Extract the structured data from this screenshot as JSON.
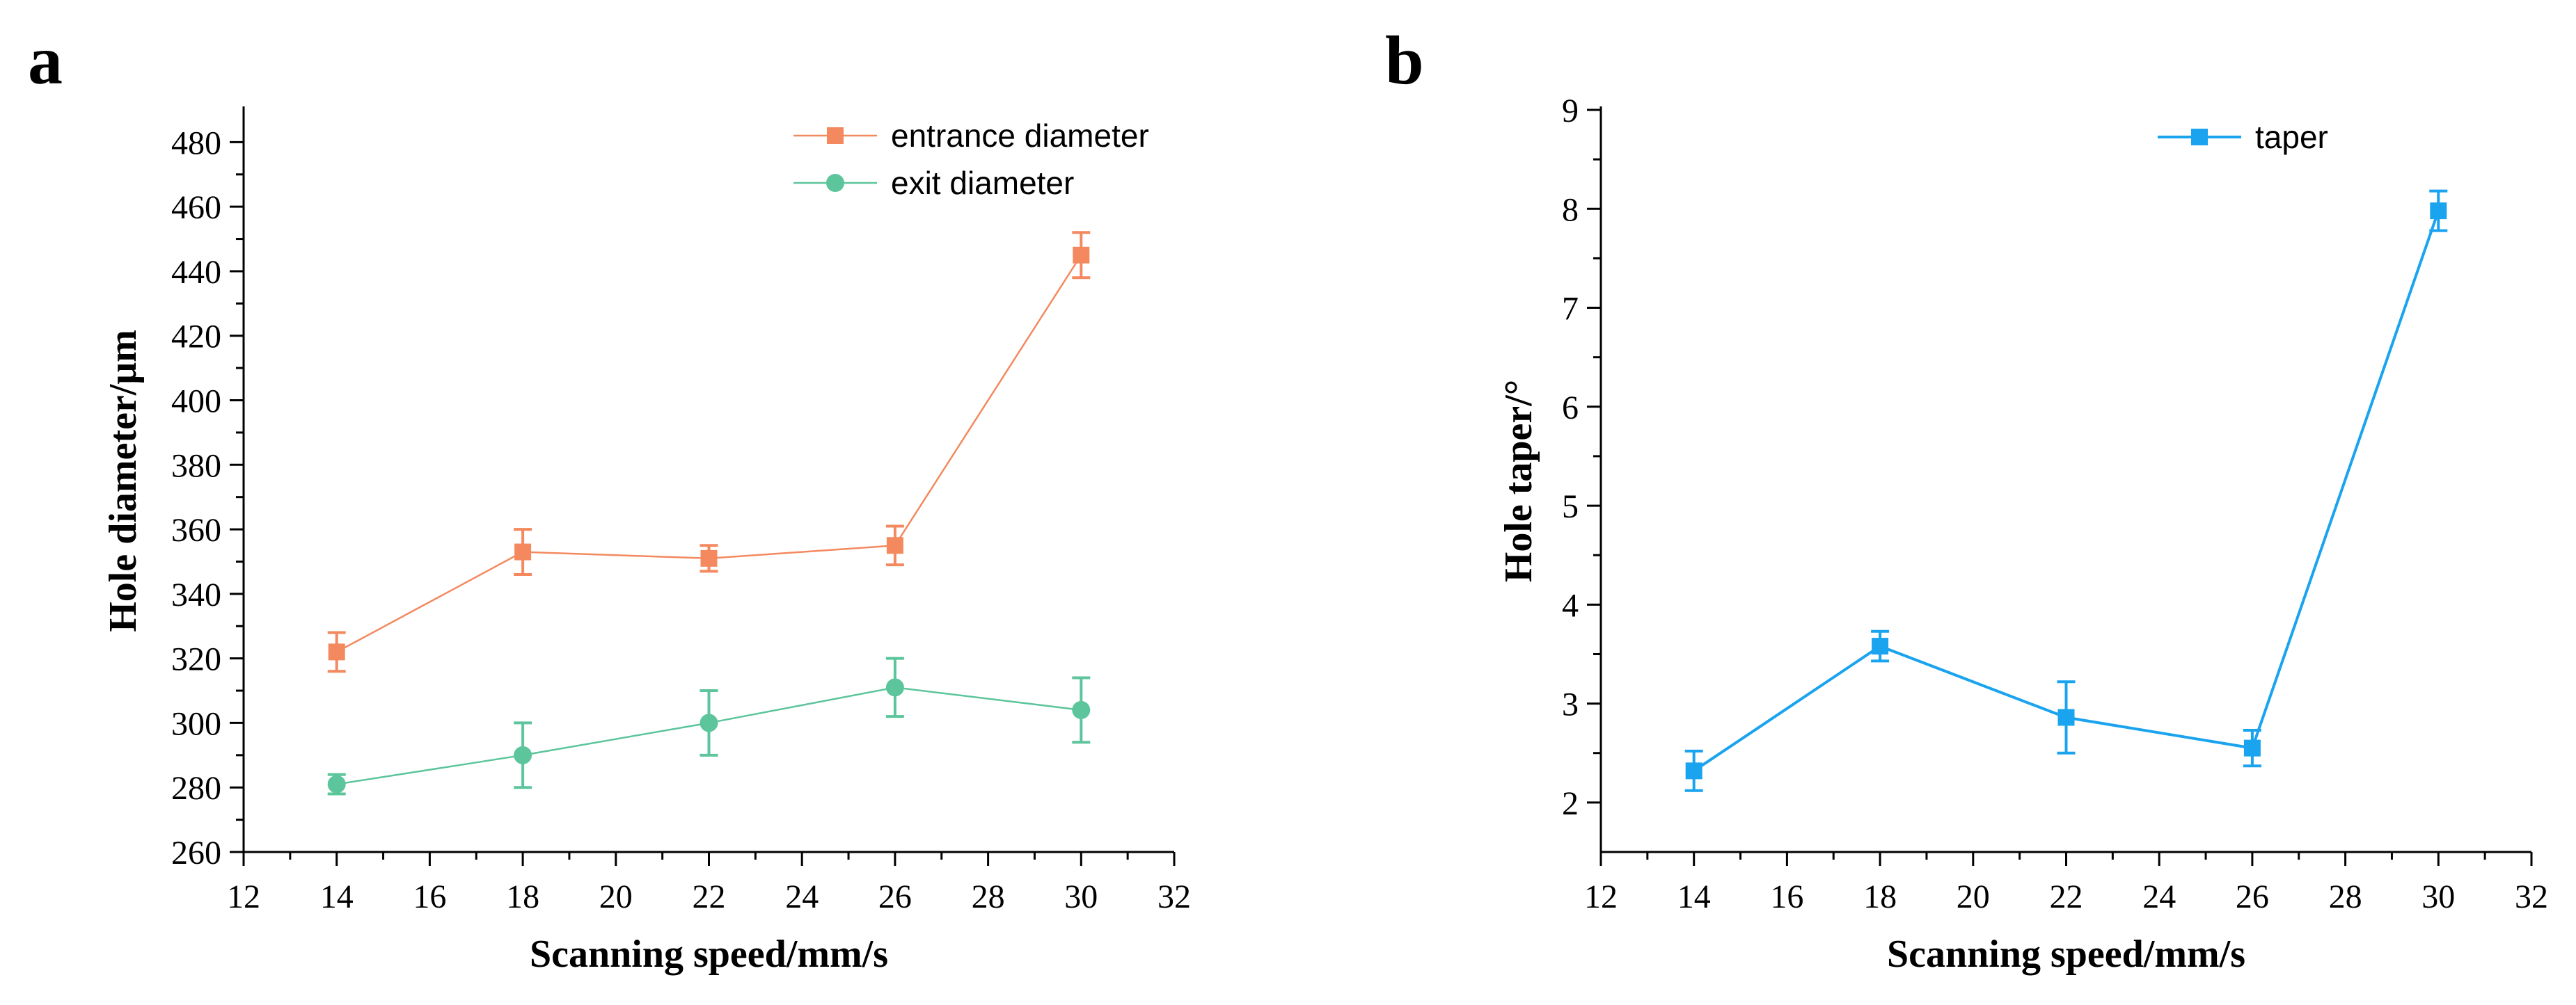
{
  "chart_data": [
    {
      "panel_label": "a",
      "type": "line",
      "xlabel": "Scanning speed/mm/s",
      "ylabel": "Hole diameter/μm",
      "xlim": [
        12,
        32
      ],
      "ylim": [
        260,
        490
      ],
      "xticks": [
        12,
        14,
        16,
        18,
        20,
        22,
        24,
        26,
        28,
        30,
        32
      ],
      "yticks": [
        260,
        280,
        300,
        320,
        340,
        360,
        380,
        400,
        420,
        440,
        460,
        480
      ],
      "legend_position": "top-right",
      "series": [
        {
          "name": "entrance diameter",
          "marker": "square",
          "color": "#f4895f",
          "x": [
            14,
            18,
            22,
            26,
            30
          ],
          "values": [
            322,
            353,
            351,
            355,
            445
          ],
          "errors": [
            6,
            7,
            4,
            6,
            7
          ]
        },
        {
          "name": "exit diameter",
          "marker": "circle",
          "color": "#5cc59c",
          "x": [
            14,
            18,
            22,
            26,
            30
          ],
          "values": [
            281,
            290,
            300,
            311,
            304
          ],
          "errors": [
            3,
            10,
            10,
            9,
            10
          ]
        }
      ]
    },
    {
      "panel_label": "b",
      "type": "line",
      "xlabel": "Scanning speed/mm/s",
      "ylabel": "Hole taper/°",
      "xlim": [
        12,
        32
      ],
      "ylim": [
        1.5,
        9
      ],
      "xticks": [
        12,
        14,
        16,
        18,
        20,
        22,
        24,
        26,
        28,
        30,
        32
      ],
      "yticks": [
        2,
        3,
        4,
        5,
        6,
        7,
        8,
        9
      ],
      "legend_position": "top-center",
      "series": [
        {
          "name": "taper",
          "marker": "square",
          "color": "#1aa3ee",
          "x": [
            14,
            18,
            22,
            26,
            30
          ],
          "values": [
            2.32,
            3.58,
            2.86,
            2.55,
            7.98
          ],
          "errors": [
            0.2,
            0.15,
            0.36,
            0.18,
            0.2
          ]
        }
      ]
    }
  ]
}
